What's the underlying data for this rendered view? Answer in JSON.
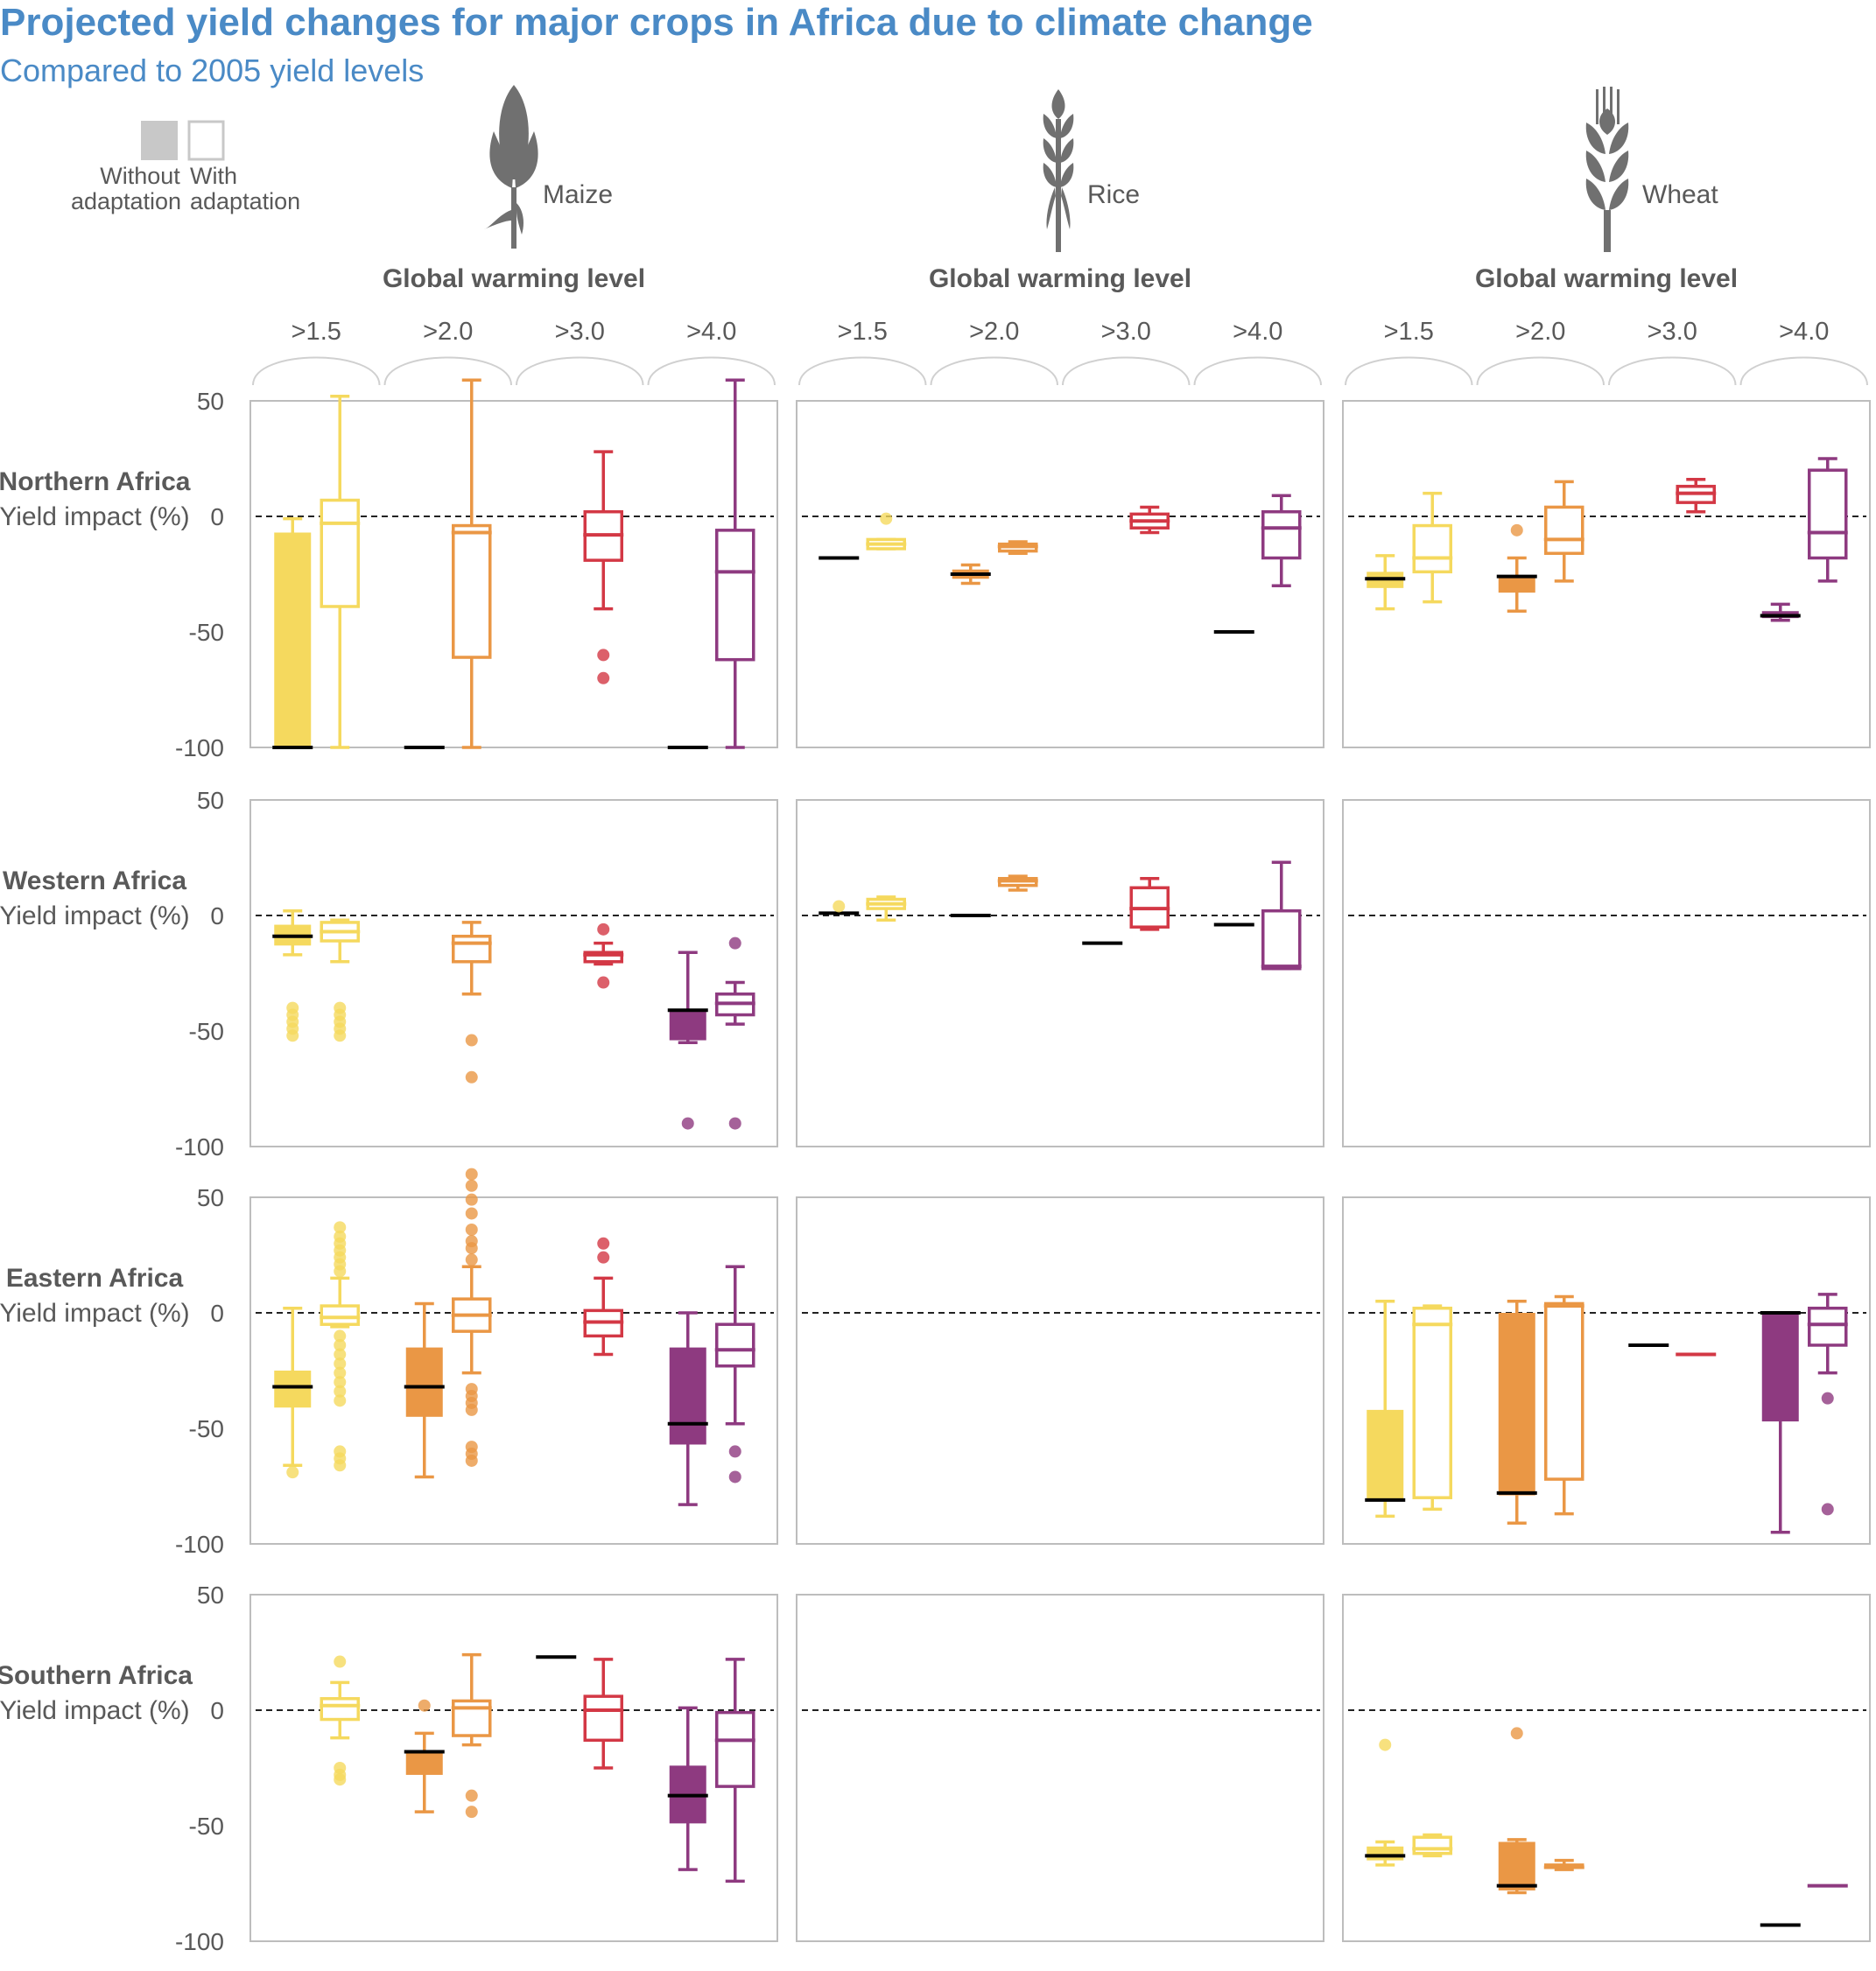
{
  "header": {
    "title": "Projected yield changes for major crops in Africa due to climate change",
    "subtitle": "Compared to 2005 yield levels"
  },
  "legend": {
    "without_line1": "Without",
    "without_line2": "adaptation",
    "with_line1": "With",
    "with_line2": "adaptation",
    "without_fill": "#c8c8c8",
    "with_stroke": "#c8c8c8"
  },
  "chart_data": {
    "type": "box",
    "title": "Projected yield changes for major crops in Africa due to climate change",
    "subtitle": "Compared to 2005 yield levels",
    "ylabel": "Yield impact (%)",
    "ylim": [
      -100,
      50
    ],
    "yticks": [
      "50",
      "0",
      "-50",
      "-100"
    ],
    "zero_line": "dashed",
    "group_label": "Global warming level",
    "groups": [
      ">1.5",
      ">2.0",
      ">3.0",
      ">4.0"
    ],
    "colors": {
      ">1.5": "#f5d95e",
      ">2.0": "#ea9745",
      ">3.0": "#d33845",
      ">4.0": "#8e3a80"
    },
    "crops": [
      {
        "key": "maize",
        "label": "Maize",
        "icon": "maize-icon"
      },
      {
        "key": "rice",
        "label": "Rice",
        "icon": "rice-icon"
      },
      {
        "key": "wheat",
        "label": "Wheat",
        "icon": "wheat-icon"
      }
    ],
    "regions": [
      {
        "name": "Northern Africa",
        "ylabel": "Yield impact (%)",
        "panels": {
          "maize": [
            {
              "g": 0,
              "adapt": false,
              "min": -100,
              "q1": -100,
              "med": -100,
              "q3": -7,
              "max": -1,
              "out": []
            },
            {
              "g": 0,
              "adapt": true,
              "min": -100,
              "q1": -39,
              "med": -3,
              "q3": 7,
              "max": 52,
              "out": []
            },
            {
              "g": 1,
              "adapt": false,
              "min": -100,
              "q1": -100,
              "med": -100,
              "q3": -100,
              "max": -100,
              "out": []
            },
            {
              "g": 1,
              "adapt": true,
              "min": -100,
              "q1": -61,
              "med": -7,
              "q3": -4,
              "max": 59,
              "out": []
            },
            {
              "g": 2,
              "adapt": true,
              "min": -40,
              "q1": -19,
              "med": -8,
              "q3": 2,
              "max": 28,
              "out": [
                -60,
                -70
              ]
            },
            {
              "g": 3,
              "adapt": false,
              "min": -100,
              "q1": -100,
              "med": -100,
              "q3": -100,
              "max": -100,
              "out": []
            },
            {
              "g": 3,
              "adapt": true,
              "min": -100,
              "q1": -62,
              "med": -24,
              "q3": -6,
              "max": 59,
              "out": []
            }
          ],
          "rice": [
            {
              "g": 0,
              "adapt": false,
              "min": -18,
              "q1": -18,
              "med": -18,
              "q3": -18,
              "max": -18,
              "out": []
            },
            {
              "g": 0,
              "adapt": true,
              "min": -14,
              "q1": -14,
              "med": -12,
              "q3": -10,
              "max": -10,
              "out": [
                -1
              ]
            },
            {
              "g": 1,
              "adapt": false,
              "min": -29,
              "q1": -27,
              "med": -25,
              "q3": -23,
              "max": -21,
              "out": []
            },
            {
              "g": 1,
              "adapt": true,
              "min": -16,
              "q1": -15,
              "med": -13,
              "q3": -12,
              "max": -11,
              "out": []
            },
            {
              "g": 2,
              "adapt": true,
              "min": -7,
              "q1": -5,
              "med": -2,
              "q3": 1,
              "max": 4,
              "out": []
            },
            {
              "g": 3,
              "adapt": false,
              "min": -50,
              "q1": -50,
              "med": -50,
              "q3": -50,
              "max": -50,
              "out": []
            },
            {
              "g": 3,
              "adapt": true,
              "min": -30,
              "q1": -18,
              "med": -5,
              "q3": 2,
              "max": 9,
              "out": []
            }
          ],
          "wheat": [
            {
              "g": 0,
              "adapt": false,
              "min": -40,
              "q1": -31,
              "med": -27,
              "q3": -24,
              "max": -17,
              "out": []
            },
            {
              "g": 0,
              "adapt": true,
              "min": -37,
              "q1": -24,
              "med": -18,
              "q3": -4,
              "max": 10,
              "out": []
            },
            {
              "g": 1,
              "adapt": false,
              "min": -41,
              "q1": -33,
              "med": -26,
              "q3": -26,
              "max": -18,
              "out": [
                -6
              ]
            },
            {
              "g": 1,
              "adapt": true,
              "min": -28,
              "q1": -16,
              "med": -10,
              "q3": 4,
              "max": 15,
              "out": []
            },
            {
              "g": 2,
              "adapt": true,
              "min": 2,
              "q1": 6,
              "med": 10,
              "q3": 13,
              "max": 16,
              "out": []
            },
            {
              "g": 3,
              "adapt": false,
              "min": -45,
              "q1": -44,
              "med": -43,
              "q3": -41,
              "max": -38,
              "out": []
            },
            {
              "g": 3,
              "adapt": true,
              "min": -28,
              "q1": -18,
              "med": -7,
              "q3": 20,
              "max": 25,
              "out": []
            }
          ]
        }
      },
      {
        "name": "Western Africa",
        "ylabel": "Yield impact (%)",
        "panels": {
          "maize": [
            {
              "g": 0,
              "adapt": false,
              "min": -17,
              "q1": -13,
              "med": -9,
              "q3": -4,
              "max": 2,
              "out": [
                -40,
                -43,
                -46,
                -49,
                -52
              ]
            },
            {
              "g": 0,
              "adapt": true,
              "min": -20,
              "q1": -11,
              "med": -7,
              "q3": -3,
              "max": -2,
              "out": [
                -40,
                -43,
                -46,
                -49,
                -52
              ]
            },
            {
              "g": 1,
              "adapt": true,
              "min": -34,
              "q1": -20,
              "med": -12,
              "q3": -9,
              "max": -3,
              "out": [
                -54,
                -70
              ]
            },
            {
              "g": 2,
              "adapt": true,
              "min": -21,
              "q1": -20,
              "med": -17,
              "q3": -16,
              "max": -12,
              "out": [
                -6,
                -29
              ]
            },
            {
              "g": 3,
              "adapt": false,
              "min": -55,
              "q1": -54,
              "med": -41,
              "q3": -41,
              "max": -16,
              "out": [
                -90
              ]
            },
            {
              "g": 3,
              "adapt": true,
              "min": -47,
              "q1": -43,
              "med": -38,
              "q3": -34,
              "max": -29,
              "out": [
                -12,
                -90
              ]
            }
          ],
          "rice": [
            {
              "g": 0,
              "adapt": false,
              "min": 1,
              "q1": 1,
              "med": 1,
              "q3": 1,
              "max": 1,
              "out": [
                4
              ]
            },
            {
              "g": 0,
              "adapt": true,
              "min": -2,
              "q1": 3,
              "med": 5,
              "q3": 7,
              "max": 8,
              "out": []
            },
            {
              "g": 1,
              "adapt": false,
              "min": 0,
              "q1": 0,
              "med": 0,
              "q3": 0,
              "max": 0,
              "out": []
            },
            {
              "g": 1,
              "adapt": true,
              "min": 11,
              "q1": 13,
              "med": 15,
              "q3": 16,
              "max": 17,
              "out": []
            },
            {
              "g": 2,
              "adapt": false,
              "min": -12,
              "q1": -12,
              "med": -12,
              "q3": -12,
              "max": -12,
              "out": []
            },
            {
              "g": 2,
              "adapt": true,
              "min": -6,
              "q1": -5,
              "med": 3,
              "q3": 12,
              "max": 16,
              "out": []
            },
            {
              "g": 3,
              "adapt": false,
              "min": -4,
              "q1": -4,
              "med": -4,
              "q3": -4,
              "max": -4,
              "out": []
            },
            {
              "g": 3,
              "adapt": true,
              "min": -23,
              "q1": -23,
              "med": -22,
              "q3": 2,
              "max": 23,
              "out": []
            }
          ],
          "wheat": []
        }
      },
      {
        "name": "Eastern Africa",
        "ylabel": "Yield impact (%)",
        "panels": {
          "maize": [
            {
              "g": 0,
              "adapt": false,
              "min": -66,
              "q1": -41,
              "med": -32,
              "q3": -25,
              "max": 2,
              "out": [
                -69
              ]
            },
            {
              "g": 0,
              "adapt": true,
              "min": -6,
              "q1": -5,
              "med": -2,
              "q3": 3,
              "max": 15,
              "out": [
                18,
                21,
                24,
                27,
                30,
                33,
                37,
                -10,
                -14,
                -18,
                -22,
                -26,
                -30,
                -34,
                -38,
                -60,
                -63,
                -66
              ]
            },
            {
              "g": 1,
              "adapt": false,
              "min": -71,
              "q1": -45,
              "med": -32,
              "q3": -15,
              "max": 4,
              "out": []
            },
            {
              "g": 1,
              "adapt": true,
              "min": -26,
              "q1": -8,
              "med": -1,
              "q3": 6,
              "max": 20,
              "out": [
                23,
                28,
                31,
                36,
                43,
                49,
                55,
                60,
                -33,
                -36,
                -39,
                -42,
                -58,
                -61,
                -64
              ]
            },
            {
              "g": 2,
              "adapt": true,
              "min": -18,
              "q1": -10,
              "med": -4,
              "q3": 1,
              "max": 15,
              "out": [
                24,
                30
              ]
            },
            {
              "g": 3,
              "adapt": false,
              "min": -83,
              "q1": -57,
              "med": -48,
              "q3": -15,
              "max": 0,
              "out": []
            },
            {
              "g": 3,
              "adapt": true,
              "min": -48,
              "q1": -23,
              "med": -16,
              "q3": -5,
              "max": 20,
              "out": [
                -60,
                -71
              ]
            }
          ],
          "rice": [],
          "wheat": [
            {
              "g": 0,
              "adapt": false,
              "min": -88,
              "q1": -81,
              "med": -81,
              "q3": -42,
              "max": 5,
              "out": []
            },
            {
              "g": 0,
              "adapt": true,
              "min": -85,
              "q1": -80,
              "med": -5,
              "q3": 2,
              "max": 3,
              "out": []
            },
            {
              "g": 1,
              "adapt": false,
              "min": -91,
              "q1": -79,
              "med": -78,
              "q3": 0,
              "max": 5,
              "out": []
            },
            {
              "g": 1,
              "adapt": true,
              "min": -87,
              "q1": -72,
              "med": 3,
              "q3": 4,
              "max": 7,
              "out": []
            },
            {
              "g": 2,
              "adapt": false,
              "min": -14,
              "q1": -14,
              "med": -14,
              "q3": -14,
              "max": -14,
              "out": []
            },
            {
              "g": 2,
              "adapt": true,
              "min": -18,
              "q1": -18,
              "med": -18,
              "q3": -18,
              "max": -18,
              "out": []
            },
            {
              "g": 3,
              "adapt": false,
              "min": -95,
              "q1": -47,
              "med": 0,
              "q3": 0,
              "max": 0,
              "out": []
            },
            {
              "g": 3,
              "adapt": true,
              "min": -26,
              "q1": -14,
              "med": -5,
              "q3": 2,
              "max": 8,
              "out": [
                -37,
                -85
              ]
            }
          ]
        }
      },
      {
        "name": "Southern Africa",
        "ylabel": "Yield impact (%)",
        "panels": {
          "maize": [
            {
              "g": 0,
              "adapt": true,
              "min": -12,
              "q1": -4,
              "med": 2,
              "q3": 5,
              "max": 12,
              "out": [
                21,
                -25,
                -28,
                -30
              ]
            },
            {
              "g": 1,
              "adapt": false,
              "min": -44,
              "q1": -28,
              "med": -18,
              "q3": -18,
              "max": -10,
              "out": [
                2
              ]
            },
            {
              "g": 1,
              "adapt": true,
              "min": -15,
              "q1": -11,
              "med": 1,
              "q3": 4,
              "max": 24,
              "out": [
                -37,
                -44
              ]
            },
            {
              "g": 2,
              "adapt": false,
              "min": 23,
              "q1": 23,
              "med": 23,
              "q3": 23,
              "max": 23,
              "out": []
            },
            {
              "g": 2,
              "adapt": true,
              "min": -25,
              "q1": -13,
              "med": 0,
              "q3": 6,
              "max": 22,
              "out": []
            },
            {
              "g": 3,
              "adapt": false,
              "min": -69,
              "q1": -49,
              "med": -37,
              "q3": -24,
              "max": 1,
              "out": []
            },
            {
              "g": 3,
              "adapt": true,
              "min": -74,
              "q1": -33,
              "med": -13,
              "q3": -1,
              "max": 22,
              "out": []
            }
          ],
          "rice": [],
          "wheat": [
            {
              "g": 0,
              "adapt": false,
              "min": -67,
              "q1": -65,
              "med": -63,
              "q3": -59,
              "max": -57,
              "out": [
                -15
              ]
            },
            {
              "g": 0,
              "adapt": true,
              "min": -63,
              "q1": -62,
              "med": -60,
              "q3": -55,
              "max": -54,
              "out": []
            },
            {
              "g": 1,
              "adapt": false,
              "min": -79,
              "q1": -78,
              "med": -76,
              "q3": -57,
              "max": -56,
              "out": [
                -10
              ]
            },
            {
              "g": 1,
              "adapt": true,
              "min": -69,
              "q1": -68,
              "med": -68,
              "q3": -67,
              "max": -65,
              "out": []
            },
            {
              "g": 3,
              "adapt": false,
              "min": -93,
              "q1": -93,
              "med": -93,
              "q3": -93,
              "max": -93,
              "out": []
            },
            {
              "g": 3,
              "adapt": true,
              "min": -76,
              "q1": -76,
              "med": -76,
              "q3": -76,
              "max": -76,
              "out": []
            }
          ]
        }
      }
    ]
  }
}
